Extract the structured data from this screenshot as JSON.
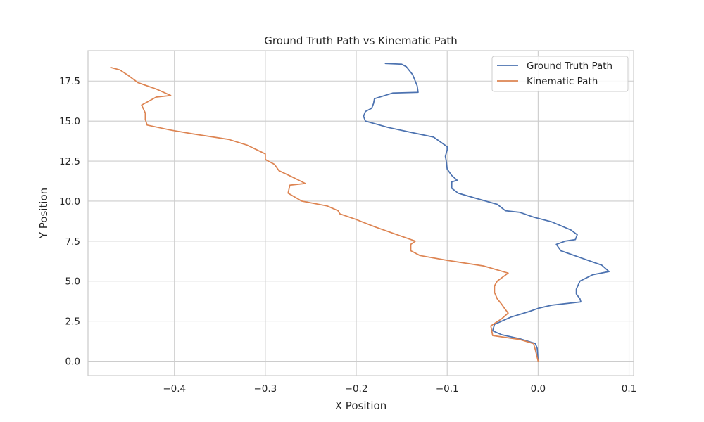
{
  "chart_data": {
    "type": "line",
    "title": "Ground Truth Path vs Kinematic Path",
    "xlabel": "X Position",
    "ylabel": "Y Position",
    "xlim": [
      -0.495,
      0.105
    ],
    "ylim": [
      -0.9,
      19.4
    ],
    "xticks": [
      -0.4,
      -0.3,
      -0.2,
      -0.1,
      0.0,
      0.1
    ],
    "xtick_labels": [
      "−0.4",
      "−0.3",
      "−0.2",
      "−0.1",
      "0.0",
      "0.1"
    ],
    "yticks": [
      0.0,
      2.5,
      5.0,
      7.5,
      10.0,
      12.5,
      15.0,
      17.5
    ],
    "ytick_labels": [
      "0.0",
      "2.5",
      "5.0",
      "7.5",
      "10.0",
      "12.5",
      "15.0",
      "17.5"
    ],
    "grid": true,
    "legend_position": "top-right",
    "series": [
      {
        "name": "Ground Truth Path",
        "color": "#4c72b0",
        "points": [
          [
            0.0,
            0.0
          ],
          [
            -0.001,
            0.8
          ],
          [
            -0.003,
            1.1
          ],
          [
            -0.02,
            1.4
          ],
          [
            -0.04,
            1.65
          ],
          [
            -0.05,
            1.9
          ],
          [
            -0.048,
            2.3
          ],
          [
            -0.03,
            2.75
          ],
          [
            -0.01,
            3.1
          ],
          [
            0.0,
            3.3
          ],
          [
            0.015,
            3.5
          ],
          [
            0.047,
            3.7
          ],
          [
            0.046,
            3.9
          ],
          [
            0.042,
            4.2
          ],
          [
            0.042,
            4.5
          ],
          [
            0.046,
            5.0
          ],
          [
            0.06,
            5.4
          ],
          [
            0.078,
            5.6
          ],
          [
            0.07,
            6.0
          ],
          [
            0.05,
            6.4
          ],
          [
            0.025,
            6.9
          ],
          [
            0.02,
            7.3
          ],
          [
            0.03,
            7.5
          ],
          [
            0.041,
            7.6
          ],
          [
            0.043,
            7.9
          ],
          [
            0.036,
            8.2
          ],
          [
            0.015,
            8.7
          ],
          [
            -0.005,
            9.0
          ],
          [
            -0.02,
            9.3
          ],
          [
            -0.036,
            9.4
          ],
          [
            -0.045,
            9.8
          ],
          [
            -0.07,
            10.2
          ],
          [
            -0.088,
            10.5
          ],
          [
            -0.095,
            10.8
          ],
          [
            -0.095,
            11.2
          ],
          [
            -0.089,
            11.3
          ],
          [
            -0.095,
            11.6
          ],
          [
            -0.1,
            12.0
          ],
          [
            -0.101,
            12.5
          ],
          [
            -0.102,
            12.8
          ],
          [
            -0.1,
            13.2
          ],
          [
            -0.1,
            13.4
          ],
          [
            -0.105,
            13.6
          ],
          [
            -0.115,
            14.0
          ],
          [
            -0.14,
            14.3
          ],
          [
            -0.165,
            14.6
          ],
          [
            -0.19,
            15.0
          ],
          [
            -0.192,
            15.3
          ],
          [
            -0.19,
            15.6
          ],
          [
            -0.183,
            15.8
          ],
          [
            -0.181,
            16.1
          ],
          [
            -0.18,
            16.4
          ],
          [
            -0.16,
            16.75
          ],
          [
            -0.132,
            16.8
          ],
          [
            -0.133,
            17.2
          ],
          [
            -0.138,
            17.9
          ],
          [
            -0.145,
            18.4
          ],
          [
            -0.15,
            18.55
          ],
          [
            -0.168,
            18.6
          ]
        ]
      },
      {
        "name": "Kinematic Path",
        "color": "#dd8452",
        "points": [
          [
            0.0,
            0.0
          ],
          [
            -0.003,
            0.7
          ],
          [
            -0.005,
            1.1
          ],
          [
            -0.02,
            1.35
          ],
          [
            -0.05,
            1.6
          ],
          [
            -0.052,
            2.2
          ],
          [
            -0.04,
            2.65
          ],
          [
            -0.033,
            3.0
          ],
          [
            -0.037,
            3.3
          ],
          [
            -0.04,
            3.55
          ],
          [
            -0.045,
            3.9
          ],
          [
            -0.048,
            4.3
          ],
          [
            -0.048,
            4.7
          ],
          [
            -0.045,
            5.0
          ],
          [
            -0.033,
            5.5
          ],
          [
            -0.06,
            5.95
          ],
          [
            -0.1,
            6.3
          ],
          [
            -0.13,
            6.6
          ],
          [
            -0.14,
            6.9
          ],
          [
            -0.14,
            7.3
          ],
          [
            -0.135,
            7.5
          ],
          [
            -0.16,
            8.0
          ],
          [
            -0.18,
            8.4
          ],
          [
            -0.2,
            8.85
          ],
          [
            -0.218,
            9.2
          ],
          [
            -0.22,
            9.4
          ],
          [
            -0.232,
            9.7
          ],
          [
            -0.26,
            10.0
          ],
          [
            -0.275,
            10.5
          ],
          [
            -0.273,
            11.0
          ],
          [
            -0.256,
            11.1
          ],
          [
            -0.27,
            11.5
          ],
          [
            -0.285,
            11.9
          ],
          [
            -0.29,
            12.3
          ],
          [
            -0.3,
            12.6
          ],
          [
            -0.3,
            12.95
          ],
          [
            -0.32,
            13.5
          ],
          [
            -0.34,
            13.85
          ],
          [
            -0.38,
            14.2
          ],
          [
            -0.405,
            14.45
          ],
          [
            -0.43,
            14.75
          ],
          [
            -0.432,
            15.1
          ],
          [
            -0.432,
            15.5
          ],
          [
            -0.436,
            16.0
          ],
          [
            -0.42,
            16.5
          ],
          [
            -0.404,
            16.6
          ],
          [
            -0.42,
            17.0
          ],
          [
            -0.44,
            17.4
          ],
          [
            -0.452,
            17.9
          ],
          [
            -0.46,
            18.2
          ],
          [
            -0.47,
            18.35
          ]
        ]
      }
    ]
  }
}
